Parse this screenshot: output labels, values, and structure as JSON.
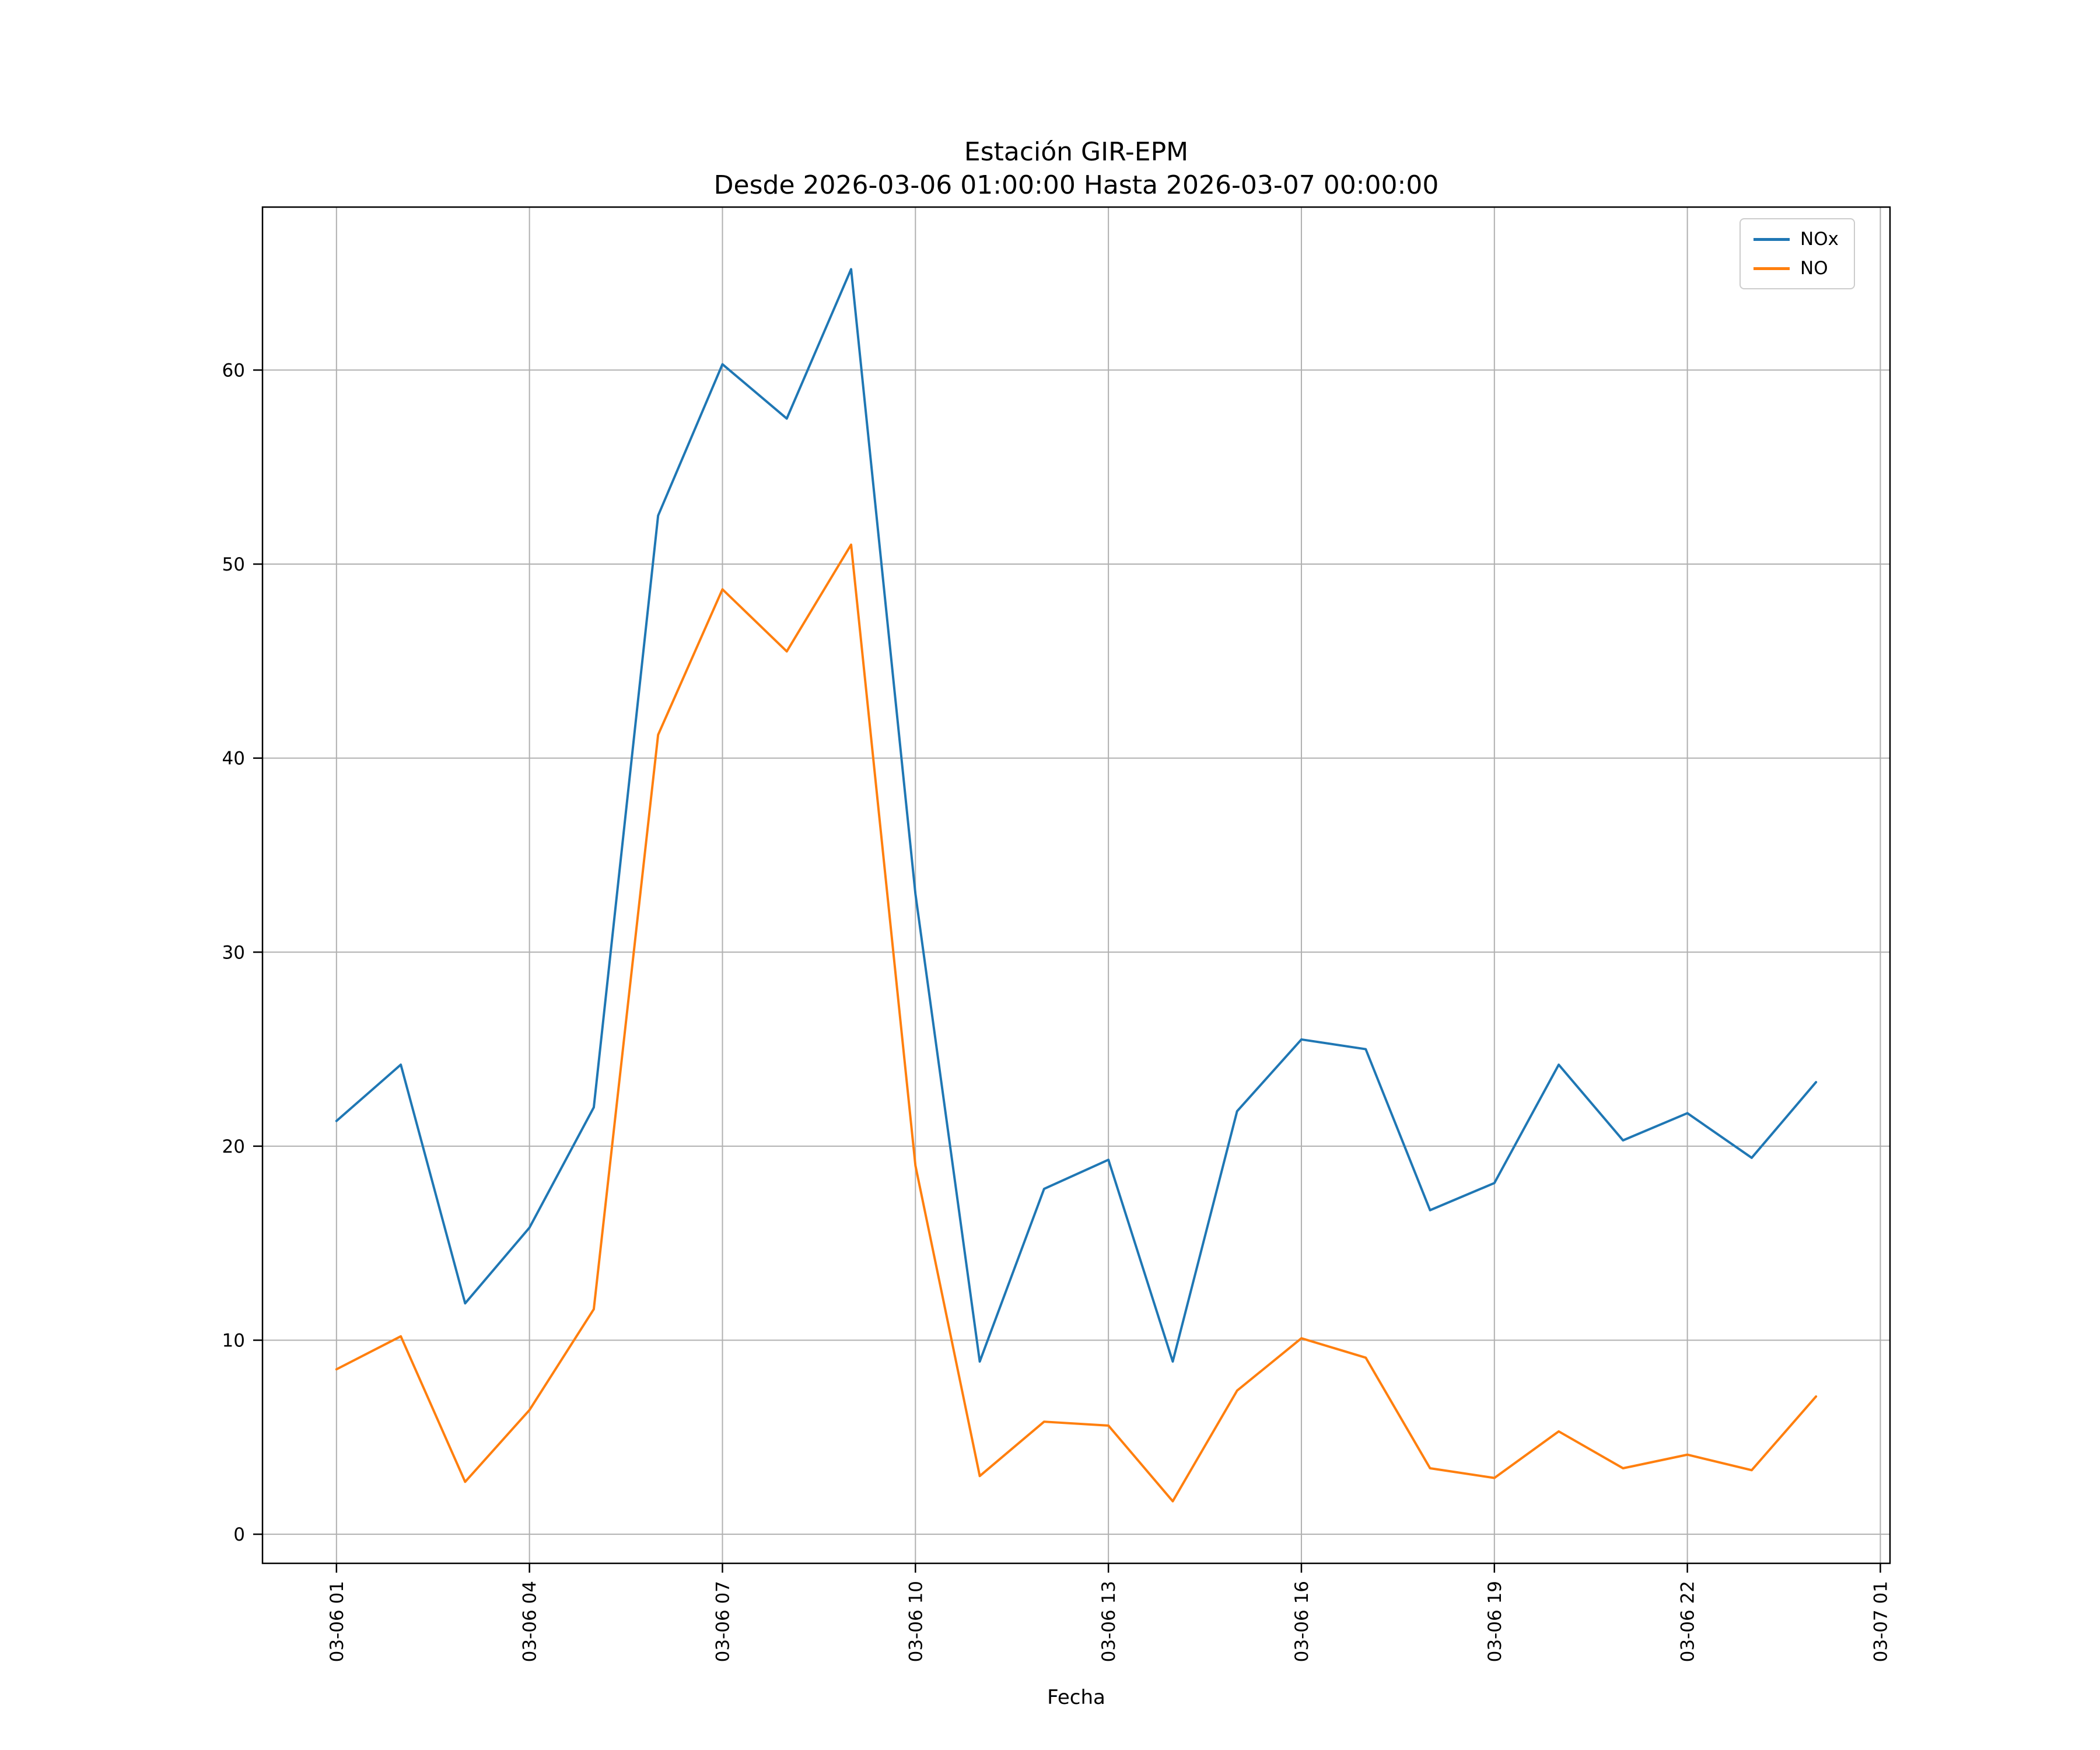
{
  "title": {
    "line1": "Estación GIR-EPM",
    "line2": "Desde 2026-03-06 01:00:00 Hasta 2026-03-07 00:00:00"
  },
  "chart_data": {
    "type": "line",
    "title": "Estación GIR-EPM\nDesde 2026-03-06 01:00:00 Hasta 2026-03-07 00:00:00",
    "xlabel": "Fecha",
    "ylabel": "",
    "x_hours": [
      1,
      2,
      3,
      4,
      5,
      6,
      7,
      8,
      9,
      10,
      11,
      12,
      13,
      14,
      15,
      16,
      17,
      18,
      19,
      20,
      21,
      22,
      23,
      24
    ],
    "series": [
      {
        "name": "NOx",
        "color": "#1f77b4",
        "values": [
          21.3,
          24.2,
          11.9,
          15.8,
          22.0,
          52.5,
          60.3,
          57.5,
          65.2,
          33.0,
          8.9,
          17.8,
          19.3,
          8.9,
          21.8,
          25.5,
          25.0,
          16.7,
          18.1,
          24.2,
          20.3,
          21.7,
          19.4,
          23.3
        ]
      },
      {
        "name": "NO",
        "color": "#ff7f0e",
        "values": [
          8.5,
          10.2,
          2.7,
          6.4,
          11.6,
          41.2,
          48.7,
          45.5,
          51.0,
          19.0,
          3.0,
          5.8,
          5.6,
          1.7,
          7.4,
          10.1,
          9.1,
          3.4,
          2.9,
          5.3,
          3.4,
          4.1,
          3.3,
          7.1
        ]
      }
    ],
    "x_tick_positions": [
      1,
      4,
      7,
      10,
      13,
      16,
      19,
      22,
      25
    ],
    "x_tick_labels": [
      "03-06 01",
      "03-06 04",
      "03-06 07",
      "03-06 10",
      "03-06 13",
      "03-06 16",
      "03-06 19",
      "03-06 22",
      "03-07 01"
    ],
    "y_ticks": [
      0,
      10,
      20,
      30,
      40,
      50,
      60
    ],
    "xlim": [
      -0.15,
      25.15
    ],
    "ylim": [
      -1.5,
      68.4
    ],
    "grid": true,
    "grid_color": "#b0b0b0",
    "legend_position": "upper right",
    "background": "#ffffff"
  }
}
